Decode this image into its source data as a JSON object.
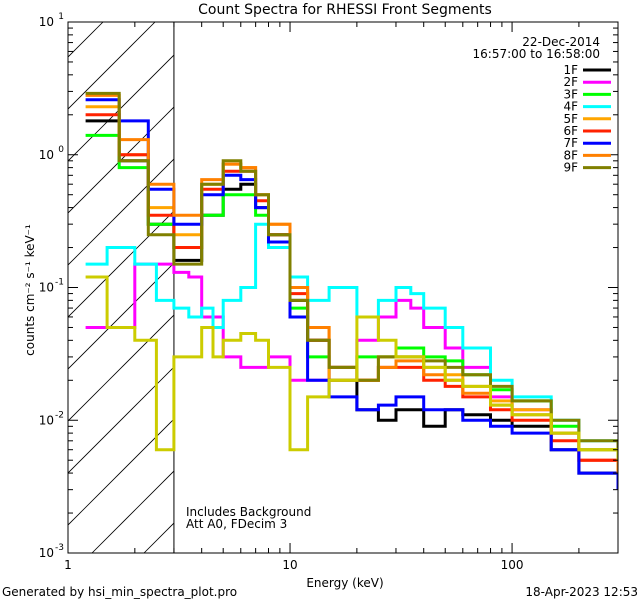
{
  "chart_data": {
    "type": "line",
    "title": "Count Spectra for RHESSI Front Segments",
    "xlabel": "Energy (keV)",
    "ylabel": "counts cm⁻² s⁻¹ keV⁻¹",
    "xscale": "log",
    "yscale": "log",
    "xlim": [
      1,
      300
    ],
    "ylim": [
      0.001,
      10
    ],
    "x_ticks": [
      {
        "value": 1,
        "label": "1"
      },
      {
        "value": 10,
        "label": "10"
      },
      {
        "value": 100,
        "label": "100"
      }
    ],
    "y_ticks": [
      {
        "value": 0.001,
        "base": "10",
        "exp": "-3"
      },
      {
        "value": 0.01,
        "base": "10",
        "exp": "-2"
      },
      {
        "value": 0.1,
        "base": "10",
        "exp": "-1"
      },
      {
        "value": 1,
        "base": "10",
        "exp": "0"
      },
      {
        "value": 10,
        "base": "10",
        "exp": "1"
      }
    ],
    "legend_position": "top-right",
    "date": "22-Dec-2014",
    "time_range": "16:57:00 to 16:58:00",
    "hatched_region_x": [
      1,
      3
    ],
    "annotations": [
      "Includes Background",
      "Att A0, FDecim 3"
    ],
    "series": [
      {
        "name": "1F",
        "color": "#000000",
        "x": [
          1.2,
          1.7,
          2.3,
          3,
          4,
          5,
          6,
          7,
          8,
          10,
          12,
          15,
          20,
          25,
          30,
          40,
          50,
          60,
          80,
          100,
          150,
          200,
          300
        ],
        "y": [
          1.8,
          0.9,
          0.3,
          0.16,
          0.35,
          0.55,
          0.6,
          0.4,
          0.25,
          0.08,
          0.04,
          0.02,
          0.012,
          0.01,
          0.012,
          0.009,
          0.012,
          0.011,
          0.01,
          0.009,
          0.006,
          0.004,
          0.003
        ]
      },
      {
        "name": "2F",
        "color": "#ff00ff",
        "x": [
          1.2,
          1.5,
          2,
          2.5,
          3,
          3.5,
          4,
          5,
          6,
          8,
          10,
          12,
          15,
          20,
          25,
          30,
          35,
          40,
          50,
          60,
          80,
          100,
          150,
          200,
          300
        ],
        "y": [
          0.05,
          0.05,
          0.15,
          0.15,
          0.13,
          0.12,
          0.06,
          0.03,
          0.025,
          0.03,
          0.02,
          0.02,
          0.025,
          0.04,
          0.06,
          0.08,
          0.07,
          0.05,
          0.035,
          0.025,
          0.015,
          0.012,
          0.008,
          0.005,
          0.003
        ]
      },
      {
        "name": "3F",
        "color": "#00ff00",
        "x": [
          1.2,
          1.7,
          2.3,
          3,
          4,
          5,
          6,
          7,
          8,
          10,
          12,
          15,
          20,
          25,
          30,
          40,
          50,
          60,
          80,
          100,
          150,
          200,
          300
        ],
        "y": [
          1.4,
          0.8,
          0.3,
          0.2,
          0.35,
          0.5,
          0.5,
          0.35,
          0.2,
          0.07,
          0.03,
          0.025,
          0.03,
          0.03,
          0.035,
          0.03,
          0.028,
          0.022,
          0.017,
          0.014,
          0.009,
          0.006,
          0.004
        ]
      },
      {
        "name": "4F",
        "color": "#00ffff",
        "x": [
          1.2,
          1.5,
          2,
          2.5,
          3,
          3.5,
          4,
          4.5,
          5,
          6,
          7,
          8,
          10,
          12,
          15,
          20,
          25,
          30,
          35,
          40,
          50,
          60,
          80,
          100,
          150,
          200,
          300
        ],
        "y": [
          0.15,
          0.2,
          0.15,
          0.08,
          0.07,
          0.06,
          0.07,
          0.05,
          0.08,
          0.1,
          0.3,
          0.2,
          0.12,
          0.08,
          0.1,
          0.06,
          0.08,
          0.1,
          0.09,
          0.07,
          0.05,
          0.035,
          0.02,
          0.015,
          0.01,
          0.007,
          0.005
        ]
      },
      {
        "name": "5F",
        "color": "#ffa500",
        "x": [
          1.2,
          1.7,
          2.3,
          3,
          4,
          5,
          6,
          7,
          8,
          10,
          12,
          15,
          20,
          25,
          30,
          40,
          50,
          60,
          80,
          100,
          150,
          200,
          300
        ],
        "y": [
          2.3,
          1.0,
          0.4,
          0.25,
          0.6,
          0.85,
          0.8,
          0.5,
          0.3,
          0.1,
          0.05,
          0.02,
          0.02,
          0.03,
          0.03,
          0.025,
          0.022,
          0.018,
          0.014,
          0.012,
          0.008,
          0.005,
          0.004
        ]
      },
      {
        "name": "6F",
        "color": "#ff2200",
        "x": [
          1.2,
          1.7,
          2.3,
          3,
          4,
          5,
          6,
          7,
          8,
          10,
          12,
          15,
          20,
          25,
          30,
          40,
          50,
          60,
          80,
          100,
          150,
          200,
          300
        ],
        "y": [
          2.0,
          1.0,
          0.35,
          0.2,
          0.55,
          0.75,
          0.75,
          0.45,
          0.25,
          0.09,
          0.04,
          0.025,
          0.02,
          0.025,
          0.025,
          0.02,
          0.018,
          0.015,
          0.012,
          0.01,
          0.007,
          0.005,
          0.004
        ]
      },
      {
        "name": "7F",
        "color": "#0000ff",
        "x": [
          1.2,
          1.7,
          2.3,
          3,
          4,
          5,
          6,
          7,
          8,
          10,
          12,
          15,
          20,
          25,
          30,
          40,
          50,
          60,
          80,
          100,
          150,
          200,
          300
        ],
        "y": [
          2.6,
          1.8,
          0.55,
          0.3,
          0.5,
          0.7,
          0.65,
          0.4,
          0.22,
          0.06,
          0.02,
          0.015,
          0.012,
          0.013,
          0.015,
          0.012,
          0.012,
          0.01,
          0.009,
          0.008,
          0.006,
          0.004,
          0.003
        ]
      },
      {
        "name": "8F",
        "color": "#ff8000",
        "x": [
          1.2,
          1.7,
          2.3,
          3,
          4,
          5,
          6,
          7,
          8,
          10,
          12,
          15,
          20,
          25,
          30,
          40,
          50,
          60,
          80,
          100,
          150,
          200,
          300
        ],
        "y": [
          2.8,
          1.3,
          0.6,
          0.35,
          0.65,
          0.85,
          0.8,
          0.5,
          0.3,
          0.1,
          0.05,
          0.025,
          0.02,
          0.025,
          0.028,
          0.022,
          0.02,
          0.016,
          0.013,
          0.011,
          0.008,
          0.006,
          0.004
        ]
      },
      {
        "name": "9F",
        "color": "#808000",
        "x": [
          1.2,
          1.7,
          2.3,
          3,
          4,
          5,
          6,
          7,
          8,
          10,
          12,
          15,
          20,
          25,
          30,
          40,
          50,
          60,
          80,
          100,
          150,
          200,
          300
        ],
        "y": [
          2.9,
          0.9,
          0.25,
          0.15,
          0.6,
          0.9,
          0.75,
          0.5,
          0.25,
          0.08,
          0.04,
          0.025,
          0.02,
          0.03,
          0.03,
          0.028,
          0.025,
          0.022,
          0.018,
          0.014,
          0.01,
          0.007,
          0.005
        ]
      },
      {
        "name": "",
        "color": "#cccc00",
        "x": [
          1.2,
          1.5,
          2,
          2.5,
          3,
          3.5,
          4,
          4.5,
          5,
          6,
          7,
          8,
          10,
          12,
          15,
          20,
          25,
          30,
          40,
          50,
          60,
          80,
          100,
          150,
          200,
          300
        ],
        "y": [
          0.12,
          0.05,
          0.04,
          0.006,
          0.03,
          0.03,
          0.05,
          0.03,
          0.04,
          0.045,
          0.04,
          0.025,
          0.006,
          0.015,
          0.02,
          0.06,
          0.04,
          0.03,
          0.025,
          0.02,
          0.018,
          0.013,
          0.011,
          0.008,
          0.006,
          0.005
        ]
      }
    ]
  },
  "footer": {
    "left": "Generated by hsi_min_spectra_plot.pro",
    "right": "18-Apr-2023 12:53"
  }
}
